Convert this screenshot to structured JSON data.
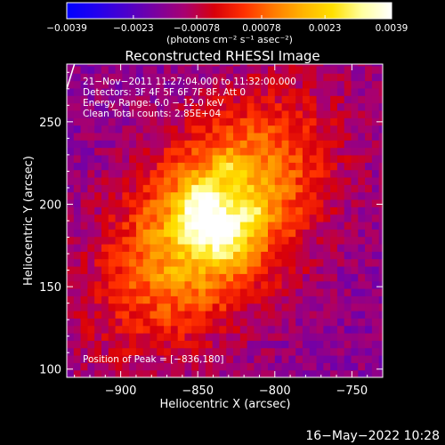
{
  "chart_data": {
    "type": "heatmap",
    "title": "Reconstructed RHESSI Image",
    "xlabel": "Heliocentric X (arcsec)",
    "ylabel": "Heliocentric Y (arcsec)",
    "xlim": [
      -935,
      -730
    ],
    "ylim": [
      95,
      285
    ],
    "x_ticks": [
      {
        "value": -900,
        "label": "−900"
      },
      {
        "value": -850,
        "label": "−850"
      },
      {
        "value": -800,
        "label": "−800"
      },
      {
        "value": -750,
        "label": "−750"
      }
    ],
    "y_ticks": [
      {
        "value": 100,
        "label": "100"
      },
      {
        "value": 150,
        "label": "150"
      },
      {
        "value": 200,
        "label": "200"
      },
      {
        "value": 250,
        "label": "250"
      }
    ],
    "colorbar": {
      "min": -0.0039,
      "max": 0.0039,
      "ticks": [
        {
          "value": -0.0039,
          "label": "−0.0039"
        },
        {
          "value": -0.0023,
          "label": "−0.0023"
        },
        {
          "value": -0.00078,
          "label": "−0.00078"
        },
        {
          "value": 0.00078,
          "label": "0.00078"
        },
        {
          "value": 0.0023,
          "label": "0.0023"
        },
        {
          "value": 0.0039,
          "label": "0.0039"
        }
      ],
      "unit_label": "(photons cm⁻² s⁻¹ asec⁻²)",
      "colormap": [
        "#0000ff",
        "#2200ee",
        "#4b00cc",
        "#7a00a0",
        "#a80070",
        "#d8000a",
        "#ff3000",
        "#ff7a00",
        "#ffb400",
        "#ffe000",
        "#ffffa0",
        "#ffffff"
      ]
    },
    "annotations": [
      "21−Nov−2011 11:27:04.000 to 11:32:00.000",
      "Detectors: 3F 4F 5F 6F 7F 8F, Att 0",
      "Energy Range: 6.0 − 12.0 keV",
      "Clean     Total counts: 2.85E+04"
    ],
    "peak_label": "Position of Peak = [−836,180]",
    "peak": {
      "x": -836,
      "y": 180
    },
    "source": {
      "x_center": -840,
      "y_center": 190,
      "peak_value": 0.0039,
      "background_value": -0.0015
    },
    "limb_line": {
      "x": [
        -935,
        -930
      ],
      "y": [
        270,
        285
      ]
    }
  },
  "timestamp": "16−May−2022 10:28"
}
